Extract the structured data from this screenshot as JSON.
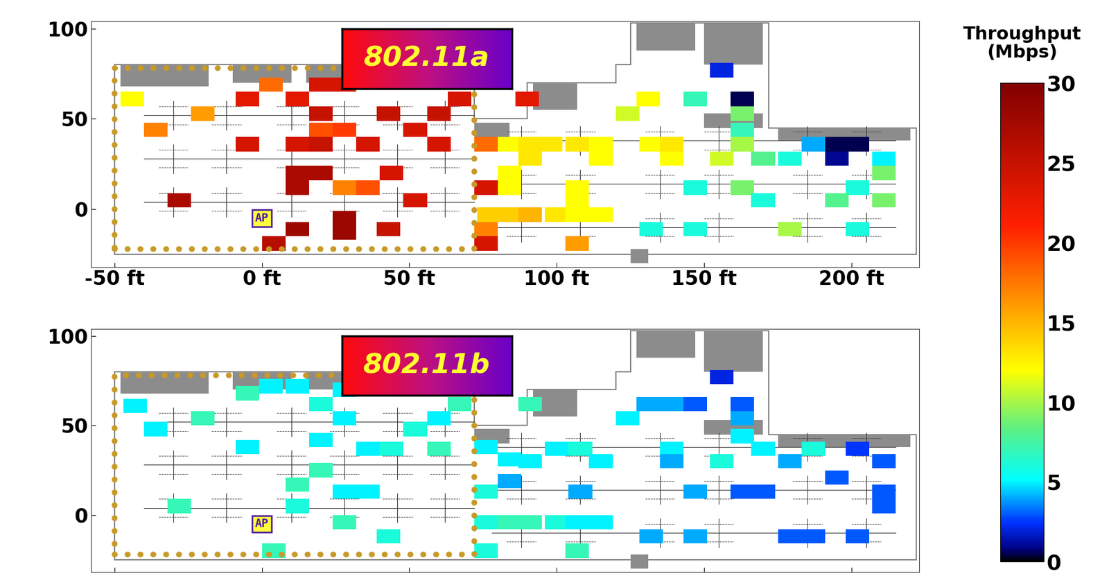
{
  "chart_data": [
    {
      "type": "heatmap",
      "title": "802.11a",
      "xlim": [
        -58,
        223
      ],
      "ylim": [
        -32,
        104
      ],
      "xticks": [
        {
          "value": -50,
          "label": "-50 ft"
        },
        {
          "value": 0,
          "label": "0 ft"
        },
        {
          "value": 50,
          "label": "50 ft"
        },
        {
          "value": 100,
          "label": "100 ft"
        },
        {
          "value": 150,
          "label": "150 ft"
        },
        {
          "value": 200,
          "label": "200 ft"
        }
      ],
      "yticks": [
        0,
        50,
        100
      ],
      "annotations": [
        {
          "text": "AP",
          "x": 0,
          "y": -5
        }
      ],
      "colorbar": {
        "label": "Throughput\n(Mbps)",
        "range": [
          0,
          30
        ],
        "ticks": [
          0,
          5,
          10,
          15,
          20,
          25,
          30
        ]
      },
      "cells": [
        [
          -44,
          61,
          12
        ],
        [
          -36,
          44,
          17
        ],
        [
          -20,
          53,
          16
        ],
        [
          -5,
          61,
          23
        ],
        [
          3,
          69,
          18
        ],
        [
          12,
          61,
          23
        ],
        [
          20,
          69,
          24
        ],
        [
          28,
          69,
          24
        ],
        [
          20,
          53,
          25
        ],
        [
          20,
          44,
          19
        ],
        [
          28,
          44,
          20
        ],
        [
          -5,
          36,
          24
        ],
        [
          12,
          36,
          24
        ],
        [
          20,
          36,
          25
        ],
        [
          36,
          36,
          24
        ],
        [
          43,
          53,
          25
        ],
        [
          52,
          44,
          24
        ],
        [
          60,
          53,
          25
        ],
        [
          60,
          36,
          24
        ],
        [
          67,
          61,
          24
        ],
        [
          12,
          20,
          27
        ],
        [
          20,
          20,
          27
        ],
        [
          12,
          12,
          27
        ],
        [
          28,
          12,
          17
        ],
        [
          36,
          12,
          19
        ],
        [
          44,
          20,
          24
        ],
        [
          52,
          5,
          24
        ],
        [
          -28,
          5,
          27
        ],
        [
          12,
          -11,
          28
        ],
        [
          28,
          -5,
          28
        ],
        [
          28,
          -13,
          28
        ],
        [
          4,
          -19,
          26
        ],
        [
          43,
          -11,
          25
        ],
        [
          76,
          36,
          18
        ],
        [
          76,
          12,
          24
        ],
        [
          76,
          -19,
          24
        ],
        [
          76,
          -11,
          17
        ],
        [
          90,
          61,
          23
        ],
        [
          84,
          36,
          12
        ],
        [
          91,
          36,
          13
        ],
        [
          98,
          36,
          13
        ],
        [
          107,
          36,
          13
        ],
        [
          115,
          36,
          12
        ],
        [
          91,
          28,
          13
        ],
        [
          115,
          28,
          12
        ],
        [
          84,
          20,
          12
        ],
        [
          84,
          12,
          12
        ],
        [
          107,
          12,
          12
        ],
        [
          107,
          5,
          12
        ],
        [
          84,
          -3,
          14
        ],
        [
          91,
          -3,
          15
        ],
        [
          100,
          -3,
          13
        ],
        [
          107,
          -3,
          12
        ],
        [
          115,
          -3,
          12
        ],
        [
          77,
          -3,
          14
        ],
        [
          107,
          -19,
          16
        ],
        [
          124,
          53,
          11
        ],
        [
          131,
          61,
          12
        ],
        [
          132,
          36,
          12
        ],
        [
          139,
          36,
          13
        ],
        [
          139,
          28,
          12
        ],
        [
          147,
          61,
          7
        ],
        [
          156,
          77,
          2
        ],
        [
          163,
          61,
          0.5
        ],
        [
          163,
          53,
          9
        ],
        [
          163,
          44,
          7
        ],
        [
          163,
          36,
          10
        ],
        [
          156,
          28,
          11
        ],
        [
          147,
          12,
          6
        ],
        [
          132,
          -11,
          6
        ],
        [
          147,
          -11,
          6
        ],
        [
          163,
          12,
          9
        ],
        [
          170,
          5,
          6
        ],
        [
          170,
          28,
          8
        ],
        [
          179,
          -11,
          10
        ],
        [
          187,
          36,
          4
        ],
        [
          179,
          28,
          6
        ],
        [
          195,
          36,
          0.5
        ],
        [
          195,
          28,
          1
        ],
        [
          202,
          36,
          0.5
        ],
        [
          211,
          28,
          5
        ],
        [
          211,
          20,
          9
        ],
        [
          211,
          5,
          9
        ],
        [
          202,
          12,
          6
        ],
        [
          195,
          5,
          8
        ],
        [
          202,
          -11,
          6
        ]
      ]
    },
    {
      "type": "heatmap",
      "title": "802.11b",
      "xlim": [
        -58,
        223
      ],
      "ylim": [
        -32,
        104
      ],
      "xticks": [
        -50,
        0,
        50,
        100,
        150,
        200
      ],
      "yticks": [
        0,
        50,
        100
      ],
      "tick_labels": "y",
      "annotations": [
        {
          "text": "AP",
          "x": 0,
          "y": -5
        }
      ],
      "cells": [
        [
          -43,
          61,
          5
        ],
        [
          -36,
          48,
          5
        ],
        [
          -20,
          54,
          7
        ],
        [
          -28,
          5,
          7
        ],
        [
          -5,
          68,
          7
        ],
        [
          3,
          72,
          5
        ],
        [
          12,
          72,
          5
        ],
        [
          28,
          70,
          5
        ],
        [
          20,
          62,
          6
        ],
        [
          28,
          54,
          5
        ],
        [
          -5,
          38,
          5
        ],
        [
          20,
          42,
          5
        ],
        [
          36,
          37,
          5
        ],
        [
          44,
          37,
          6
        ],
        [
          60,
          37,
          7
        ],
        [
          60,
          54,
          5
        ],
        [
          67,
          62,
          7
        ],
        [
          52,
          48,
          6
        ],
        [
          12,
          17,
          7
        ],
        [
          20,
          25,
          7
        ],
        [
          28,
          13,
          5
        ],
        [
          36,
          13,
          5
        ],
        [
          28,
          -4,
          7
        ],
        [
          4,
          -20,
          7
        ],
        [
          43,
          -12,
          6
        ],
        [
          12,
          5,
          6
        ],
        [
          76,
          38,
          5
        ],
        [
          76,
          13,
          6
        ],
        [
          76,
          -4,
          6
        ],
        [
          76,
          -20,
          6
        ],
        [
          84,
          31,
          5
        ],
        [
          84,
          19,
          4
        ],
        [
          91,
          62,
          7
        ],
        [
          91,
          30,
          5
        ],
        [
          100,
          37,
          5
        ],
        [
          108,
          37,
          6
        ],
        [
          115,
          30,
          5
        ],
        [
          84,
          -4,
          7
        ],
        [
          91,
          -4,
          7
        ],
        [
          100,
          -4,
          6
        ],
        [
          107,
          -4,
          5
        ],
        [
          115,
          -4,
          5
        ],
        [
          107,
          -20,
          7
        ],
        [
          108,
          13,
          4
        ],
        [
          124,
          54,
          5
        ],
        [
          131,
          62,
          4
        ],
        [
          139,
          62,
          4
        ],
        [
          147,
          62,
          3
        ],
        [
          139,
          37,
          5
        ],
        [
          139,
          30,
          4
        ],
        [
          156,
          77,
          2
        ],
        [
          163,
          62,
          3
        ],
        [
          163,
          54,
          4
        ],
        [
          163,
          44,
          5
        ],
        [
          156,
          30,
          6
        ],
        [
          147,
          13,
          4
        ],
        [
          163,
          13,
          3
        ],
        [
          170,
          37,
          5
        ],
        [
          179,
          30,
          4
        ],
        [
          187,
          37,
          6
        ],
        [
          132,
          -12,
          4
        ],
        [
          147,
          -12,
          4
        ],
        [
          179,
          -12,
          3
        ],
        [
          195,
          21,
          3
        ],
        [
          202,
          37,
          2.5
        ],
        [
          211,
          30,
          3
        ],
        [
          211,
          13,
          3
        ],
        [
          211,
          5,
          3
        ],
        [
          202,
          -12,
          3
        ],
        [
          170,
          13,
          3
        ],
        [
          187,
          -12,
          3
        ]
      ]
    }
  ]
}
